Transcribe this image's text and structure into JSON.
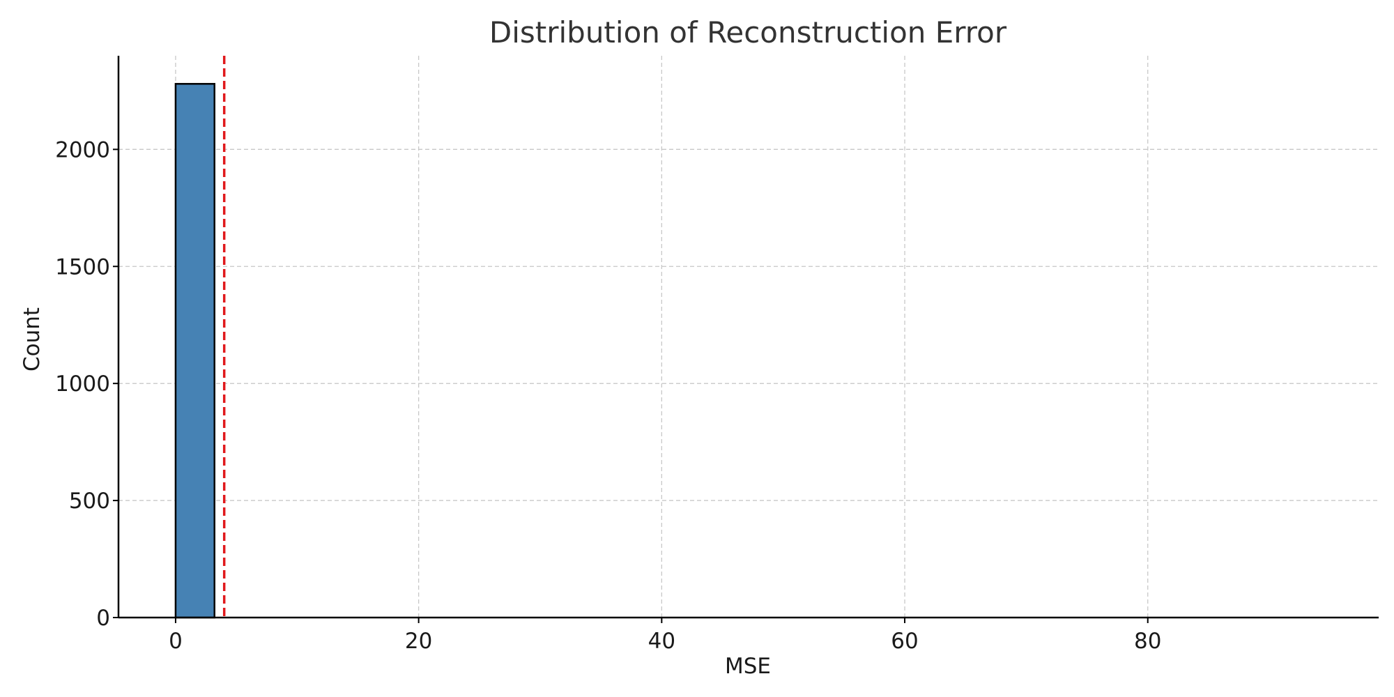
{
  "chart_data": {
    "type": "bar",
    "title": "Distribution of Reconstruction Error",
    "xlabel": "MSE",
    "ylabel": "Count",
    "xlim": [
      -4.7,
      99
    ],
    "ylim": [
      0,
      2400
    ],
    "xticks": [
      0,
      20,
      40,
      60,
      80
    ],
    "yticks": [
      0,
      500,
      1000,
      1500,
      2000
    ],
    "bins": [
      {
        "x0": 0,
        "x1": 3.2,
        "count": 2280
      }
    ],
    "threshold": {
      "x": 4.0,
      "color": "#e0191c",
      "style": "dashed"
    },
    "bar_color": "#4682b4",
    "bar_edge_color": "#000000",
    "grid": true
  }
}
